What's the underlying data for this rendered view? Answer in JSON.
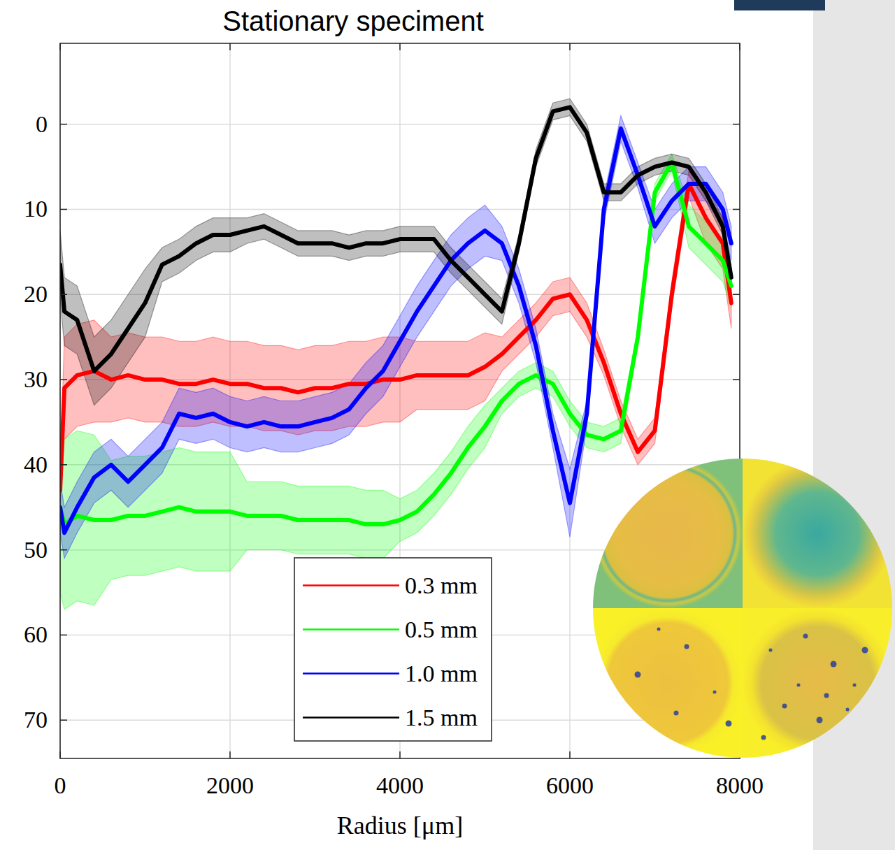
{
  "chart_data": {
    "type": "line",
    "title": "Stationary speciment",
    "x_label": "Radius [μm]",
    "x": [
      0,
      50,
      200,
      400,
      600,
      800,
      1000,
      1200,
      1400,
      1600,
      1800,
      2000,
      2200,
      2400,
      2600,
      2800,
      3000,
      3200,
      3400,
      3600,
      3800,
      4000,
      4200,
      4400,
      4600,
      4800,
      5000,
      5200,
      5400,
      5600,
      5800,
      6000,
      6200,
      6400,
      6600,
      6800,
      7000,
      7200,
      7400,
      7600,
      7800,
      7900
    ],
    "series": [
      {
        "name": "0.3 mm",
        "color": "#ff0000",
        "values": [
          43,
          31,
          29.5,
          29,
          30,
          29.5,
          30,
          30,
          30.5,
          30.5,
          30,
          30.5,
          30.5,
          31,
          31,
          31.5,
          31,
          31,
          30.5,
          30.5,
          30,
          30,
          29.5,
          29.5,
          29.5,
          29.5,
          28.5,
          27,
          25,
          23,
          20.5,
          20,
          23,
          28,
          34,
          38.5,
          36,
          20,
          7,
          11,
          14,
          21
        ],
        "error": [
          2,
          6,
          6,
          6,
          5,
          5,
          5,
          5,
          5,
          5,
          5,
          5,
          5,
          5,
          5,
          5,
          5,
          5,
          5,
          5,
          5,
          5,
          4,
          4,
          4,
          4,
          4,
          2,
          2,
          2,
          2,
          2,
          2,
          1.5,
          1.5,
          1.5,
          1.5,
          1.5,
          1.5,
          3,
          3,
          3
        ]
      },
      {
        "name": "0.5 mm",
        "color": "#00ff00",
        "values": [
          45,
          47,
          46,
          46.5,
          46.5,
          46,
          46,
          45.5,
          45,
          45.5,
          45.5,
          45.5,
          46,
          46,
          46,
          46.5,
          46.5,
          46.5,
          46.5,
          47,
          47,
          46.5,
          45.5,
          43.5,
          41,
          38,
          35.5,
          32.5,
          30.5,
          29.5,
          30.5,
          34,
          36.5,
          37,
          36,
          25,
          8,
          4.5,
          12,
          14,
          16,
          19
        ],
        "error": [
          10,
          10,
          10,
          10,
          7,
          7,
          7,
          7,
          7,
          7,
          7,
          7,
          4,
          4,
          4,
          4,
          4,
          4,
          4,
          4,
          4,
          2.5,
          2.5,
          2.5,
          2.5,
          2.5,
          2.5,
          1.5,
          1.5,
          1.5,
          1.5,
          1.5,
          1.5,
          1.5,
          1.5,
          1,
          1,
          1,
          2.5,
          2.5,
          2.5,
          2.5
        ]
      },
      {
        "name": "1.0 mm",
        "color": "#0000ff",
        "values": [
          45,
          48,
          45,
          41.5,
          40,
          42,
          40,
          38,
          34,
          34.5,
          34,
          35,
          35.5,
          35,
          35.5,
          35.5,
          35,
          34.5,
          33.5,
          31,
          29,
          25.5,
          22,
          19,
          16,
          14,
          12.5,
          14,
          19,
          26,
          36,
          44.5,
          34,
          10,
          0.5,
          6,
          12,
          9,
          7,
          7,
          10,
          14
        ],
        "error": [
          3,
          3,
          3,
          3,
          3,
          3,
          3,
          3,
          3,
          3,
          3,
          3,
          3,
          3,
          3,
          3,
          3,
          3,
          3,
          3,
          3,
          3,
          3,
          3,
          3,
          3,
          3,
          2,
          2,
          2,
          2,
          4,
          1.5,
          1.5,
          1.5,
          1.5,
          2,
          2,
          2,
          2,
          2,
          2
        ]
      },
      {
        "name": "1.5 mm",
        "color": "#000000",
        "values": [
          16.5,
          22,
          23,
          29,
          27,
          24,
          21,
          16.5,
          15.5,
          14,
          13,
          13,
          12.5,
          12,
          13,
          14,
          14,
          14,
          14.5,
          14,
          14,
          13.5,
          13.5,
          13.5,
          16,
          18,
          20,
          22,
          14,
          4,
          -1.5,
          -2,
          1,
          8,
          8,
          6,
          5,
          4.5,
          5,
          8,
          12,
          18
        ],
        "error": [
          4,
          4,
          4,
          4,
          4,
          4,
          4,
          2,
          2,
          2,
          2,
          2,
          1.5,
          1.5,
          1.5,
          1.5,
          1.5,
          1.5,
          1.5,
          1.5,
          1.5,
          1.5,
          1.5,
          1.5,
          1.5,
          1.5,
          1.5,
          1.5,
          1,
          1,
          1,
          1,
          1,
          1,
          1,
          1,
          1,
          1,
          1,
          1,
          1,
          1
        ]
      }
    ],
    "xlim": [
      0,
      8000
    ],
    "xticks": [
      0,
      2000,
      4000,
      6000,
      8000
    ],
    "ylim": [
      74.5,
      -9.5
    ],
    "yticks": [
      0,
      10,
      20,
      30,
      40,
      50,
      60,
      70
    ],
    "grid": true,
    "legend": "lower center"
  }
}
